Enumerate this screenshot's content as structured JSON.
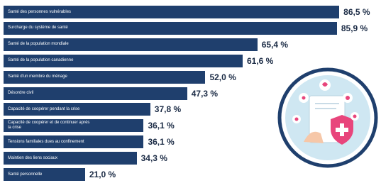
{
  "chart_data": {
    "type": "bar",
    "orientation": "horizontal",
    "color": "#1f3f6d",
    "categories": [
      "Santé des personnes vulnérables",
      "Surcharge du système de santé",
      "Santé de la population mondiale",
      "Santé de la population canadienne",
      "Santé d'un membre du ménage",
      "Désordre civil",
      "Capacité de coopérer pendant la crise",
      "Capacité de coopérer et de continuer après la crise",
      "Tensions familiales dues au confinement",
      "Maintien des liens sociaux",
      "Santé personnelle"
    ],
    "values": [
      86.5,
      85.9,
      65.4,
      61.6,
      52.0,
      47.3,
      37.8,
      36.1,
      36.1,
      34.3,
      21.0
    ],
    "value_labels": [
      "86,5 %",
      "85,9 %",
      "65,4 %",
      "61,6 %",
      "52,0 %",
      "47,3 %",
      "37,8 %",
      "36,1 %",
      "36,1 %",
      "34,3 %",
      "21,0 %"
    ]
  }
}
